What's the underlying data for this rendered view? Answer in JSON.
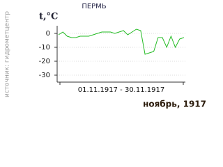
{
  "chart_data": {
    "type": "line",
    "title": "ПЕРМЬ",
    "y_label": "t,°C",
    "source": "источник: гидрометцентр",
    "x_label": "01.11.1917 - 30.11.1917",
    "caption": "ноябрь, 1917",
    "values": [
      -1,
      1,
      -2,
      -3,
      -3,
      -2,
      -2,
      -2,
      -1,
      0,
      1,
      1,
      1,
      0,
      1,
      2,
      -1,
      1,
      3,
      2,
      -15,
      -14,
      -13,
      -3,
      -3,
      -10,
      -2,
      -10,
      -4,
      -3
    ],
    "color": "#22bb22",
    "ylim": [
      -35,
      5.5
    ],
    "yticks": [
      0,
      -10,
      -20,
      -30
    ],
    "grid": true
  }
}
